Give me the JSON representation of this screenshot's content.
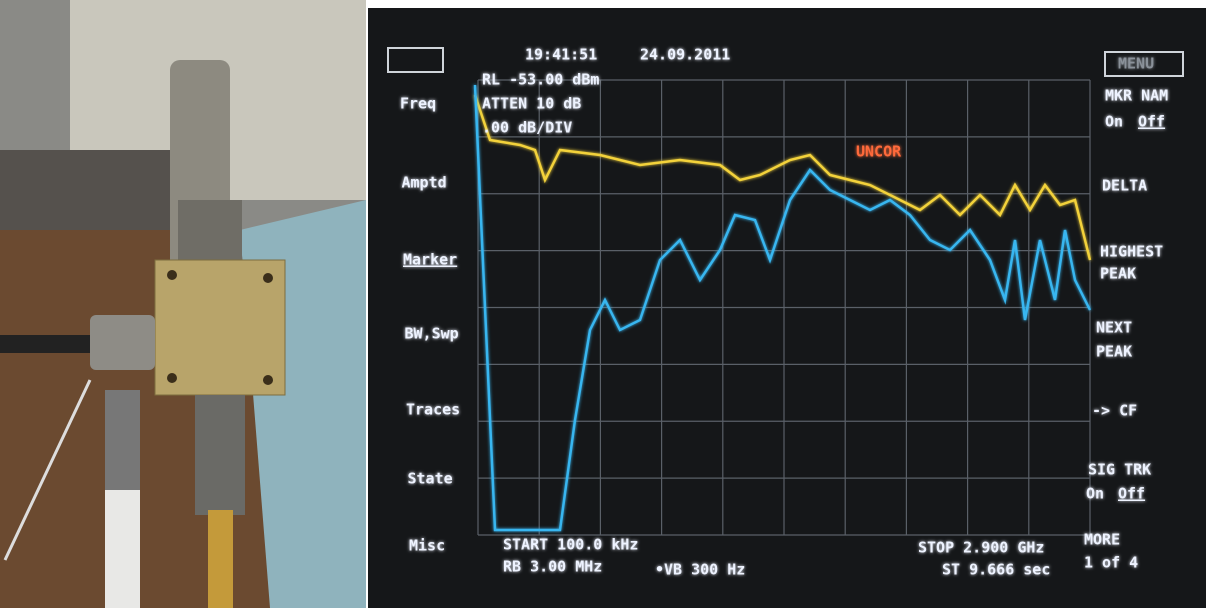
{
  "header": {
    "time": "19:41:51",
    "date": "24.09.2011"
  },
  "settings": {
    "reference_level": "RL -53.00 dBm",
    "attenuation": "ATTEN 10 dB",
    "scale": ".00 dB/DIV",
    "status": "UNCOR"
  },
  "left_menu": [
    "Freq",
    "Amptd",
    "Marker",
    "BW,Swp",
    "Traces",
    "State",
    "Misc"
  ],
  "right_menu": {
    "menu": "MENU",
    "marker_name": "MKR NAM",
    "marker_name_on": "On",
    "marker_name_off": "Off",
    "delta": "DELTA",
    "highest_peak": [
      "HIGHEST",
      "PEAK"
    ],
    "next_peak": [
      "NEXT",
      "PEAK"
    ],
    "to_cf": "-> CF",
    "signal_track": "SIG TRK",
    "signal_track_on": "On",
    "signal_track_off": "Off",
    "more": "MORE",
    "page": "1 of 4"
  },
  "footer": {
    "start": "START 100.0 kHz",
    "resolution_bandwidth": "RB 3.00 MHz",
    "video_bandwidth": "•VB 300 Hz",
    "stop": "STOP 2.900 GHz",
    "sweep_time": "ST 9.666 sec"
  }
}
